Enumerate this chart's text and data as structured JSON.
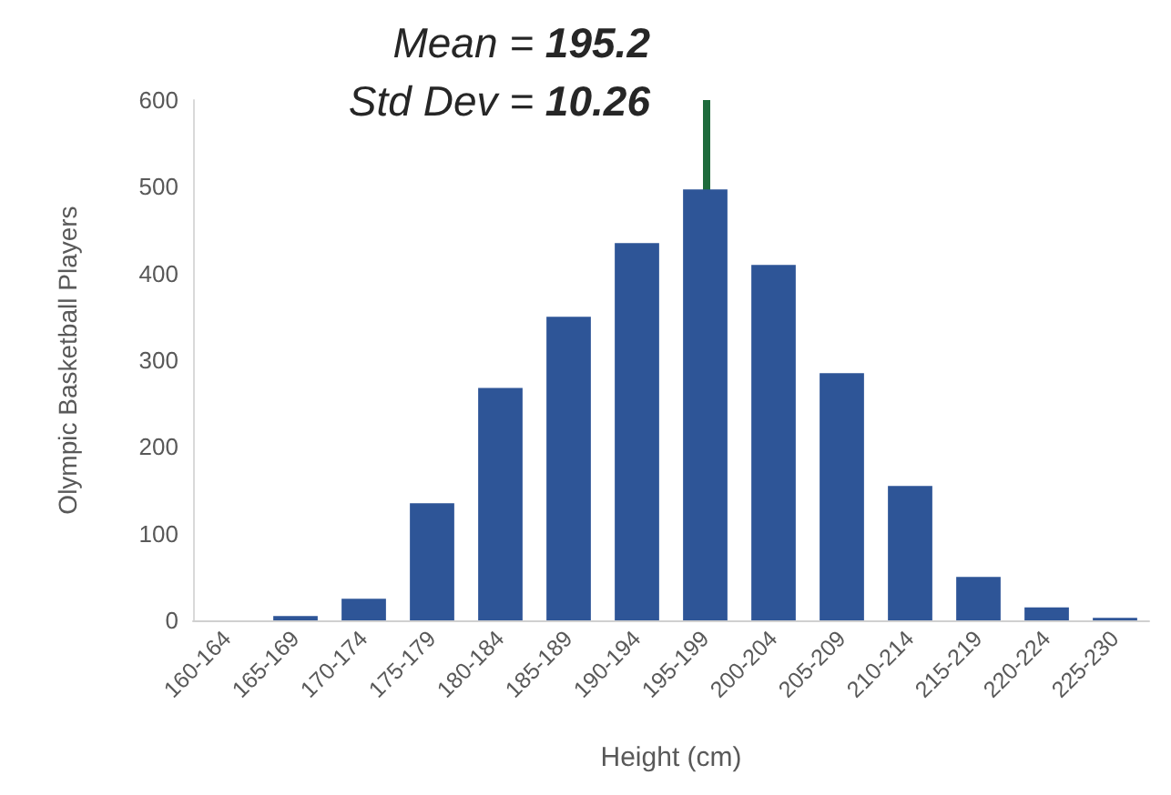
{
  "chart_data": {
    "type": "bar",
    "xlabel": "Height (cm)",
    "ylabel": "Olympic Basketball Players",
    "annotations": [
      "Mean = 195.2",
      "Std Dev = 10.26"
    ],
    "categories": [
      "160-164",
      "165-169",
      "170-174",
      "175-179",
      "180-184",
      "185-189",
      "190-194",
      "195-199",
      "200-204",
      "205-209",
      "210-214",
      "215-219",
      "220-224",
      "225-230"
    ],
    "values": [
      0,
      5,
      25,
      135,
      268,
      350,
      435,
      497,
      410,
      285,
      155,
      50,
      15,
      3
    ],
    "color": "#2e5597",
    "ylim": [
      0,
      600
    ],
    "yticks": [
      0,
      100,
      200,
      300,
      400,
      500,
      600
    ],
    "grid": false,
    "ref_lines": [
      {
        "axis": "x",
        "value": "195-199",
        "color": "#1e6b3c"
      }
    ]
  }
}
